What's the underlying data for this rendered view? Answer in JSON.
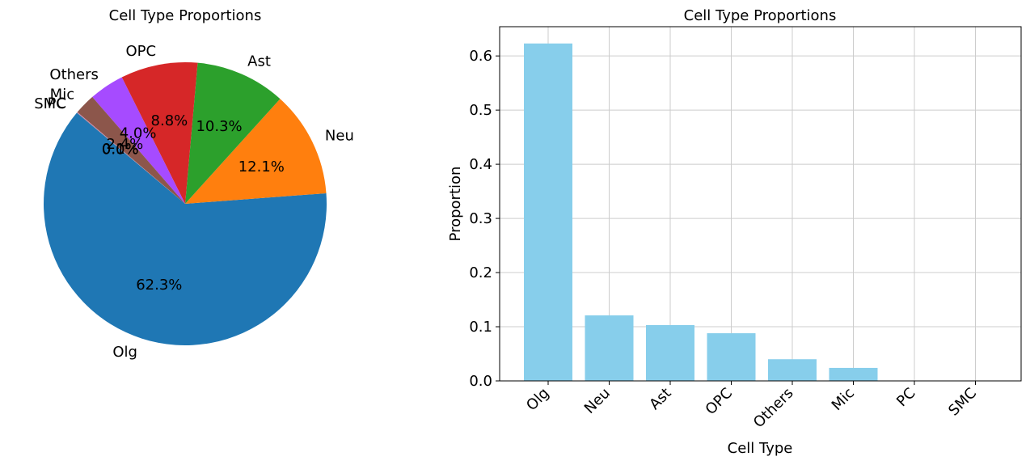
{
  "chart_data": [
    {
      "type": "pie",
      "title": "Cell Type Proportions",
      "categories": [
        "Olg",
        "Neu",
        "Ast",
        "OPC",
        "Others",
        "Mic",
        "PC",
        "SMC"
      ],
      "values": [
        0.623,
        0.121,
        0.103,
        0.088,
        0.04,
        0.024,
        0.0005,
        0.0005
      ],
      "labels_pct": [
        "62.3%",
        "12.1%",
        "10.3%",
        "8.8%",
        "4.0%",
        "2.4%",
        "0.1%",
        "0.0%"
      ],
      "colors": [
        "#1f77b4",
        "#ff7f0e",
        "#2ca02c",
        "#d62728",
        "#a64bff",
        "#8c564b",
        "#e377c2",
        "#7f7f7f"
      ],
      "start_angle_deg": 140,
      "direction": "counterclockwise"
    },
    {
      "type": "bar",
      "title": "Cell Type Proportions",
      "categories": [
        "Olg",
        "Neu",
        "Ast",
        "OPC",
        "Others",
        "Mic",
        "PC",
        "SMC"
      ],
      "values": [
        0.623,
        0.121,
        0.103,
        0.088,
        0.04,
        0.024,
        0.0005,
        0.0005
      ],
      "xlabel": "Cell Type",
      "ylabel": "Proportion",
      "ylim": [
        0,
        0.654
      ],
      "yticks": [
        0.0,
        0.1,
        0.2,
        0.3,
        0.4,
        0.5,
        0.6
      ],
      "ytick_labels": [
        "0.0",
        "0.1",
        "0.2",
        "0.3",
        "0.4",
        "0.5",
        "0.6"
      ],
      "bar_color": "#87ceeb",
      "grid": true,
      "xtick_rotation_deg": -45
    }
  ]
}
